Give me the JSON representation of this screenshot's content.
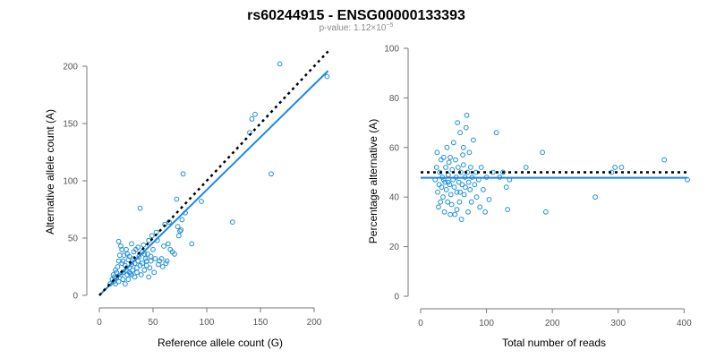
{
  "header": {
    "title": "rs60244915 - ENSG00000133393",
    "pvalue_text": "p-value: 1.12×10",
    "pvalue_exp": "−5"
  },
  "colors": {
    "points": "#1f8fd6",
    "fit": "#1e88e5",
    "reference": "#000000"
  },
  "chart_data": [
    {
      "type": "scatter",
      "xlabel": "Reference allele count (G)",
      "ylabel": "Alternative allele count (A)",
      "xlim": [
        0,
        215
      ],
      "ylim": [
        0,
        200
      ],
      "xticks": [
        0,
        50,
        100,
        150,
        200
      ],
      "yticks": [
        0,
        50,
        100,
        150,
        200
      ],
      "fit_line": {
        "x": [
          0,
          213
        ],
        "y": [
          0,
          196
        ]
      },
      "reference_line": {
        "x": [
          0,
          213
        ],
        "y": [
          0,
          213
        ]
      },
      "points": [
        [
          10,
          10
        ],
        [
          12,
          14
        ],
        [
          13,
          18
        ],
        [
          14,
          12
        ],
        [
          15,
          10
        ],
        [
          15,
          22
        ],
        [
          16,
          15
        ],
        [
          17,
          25
        ],
        [
          18,
          12
        ],
        [
          18,
          30
        ],
        [
          18,
          47
        ],
        [
          19,
          35
        ],
        [
          20,
          18
        ],
        [
          20,
          43
        ],
        [
          21,
          28
        ],
        [
          22,
          20
        ],
        [
          22,
          14
        ],
        [
          23,
          35
        ],
        [
          24,
          26
        ],
        [
          24,
          10
        ],
        [
          25,
          22
        ],
        [
          25,
          40
        ],
        [
          26,
          18
        ],
        [
          27,
          31
        ],
        [
          27,
          14
        ],
        [
          28,
          24
        ],
        [
          28,
          34
        ],
        [
          29,
          19
        ],
        [
          30,
          27
        ],
        [
          30,
          45
        ],
        [
          31,
          22
        ],
        [
          32,
          32
        ],
        [
          33,
          16
        ],
        [
          33,
          28
        ],
        [
          34,
          40
        ],
        [
          35,
          24
        ],
        [
          35,
          20
        ],
        [
          36,
          30
        ],
        [
          37,
          34
        ],
        [
          38,
          26
        ],
        [
          38,
          76
        ],
        [
          39,
          18
        ],
        [
          40,
          38
        ],
        [
          40,
          28
        ],
        [
          41,
          44
        ],
        [
          42,
          22
        ],
        [
          43,
          32
        ],
        [
          44,
          26
        ],
        [
          45,
          36
        ],
        [
          46,
          16
        ],
        [
          46,
          48
        ],
        [
          47,
          24
        ],
        [
          48,
          30
        ],
        [
          49,
          52
        ],
        [
          50,
          40
        ],
        [
          51,
          20
        ],
        [
          52,
          32
        ],
        [
          53,
          55
        ],
        [
          55,
          27
        ],
        [
          56,
          30
        ],
        [
          58,
          32
        ],
        [
          59,
          25
        ],
        [
          60,
          43
        ],
        [
          61,
          62
        ],
        [
          62,
          28
        ],
        [
          63,
          30
        ],
        [
          64,
          45
        ],
        [
          65,
          64
        ],
        [
          66,
          40
        ],
        [
          68,
          38
        ],
        [
          70,
          36
        ],
        [
          72,
          84
        ],
        [
          73,
          60
        ],
        [
          74,
          52
        ],
        [
          75,
          56
        ],
        [
          76,
          57
        ],
        [
          77,
          66
        ],
        [
          78,
          106
        ],
        [
          80,
          72
        ],
        [
          86,
          45
        ],
        [
          95,
          82
        ],
        [
          124,
          64
        ],
        [
          140,
          142
        ],
        [
          142,
          154
        ],
        [
          145,
          158
        ],
        [
          160,
          106
        ],
        [
          168,
          202
        ],
        [
          212,
          191
        ],
        [
          30,
          18
        ],
        [
          32,
          38
        ],
        [
          36,
          42
        ],
        [
          42,
          36
        ],
        [
          26,
          36
        ],
        [
          21,
          40
        ],
        [
          16,
          20
        ],
        [
          14,
          16
        ],
        [
          22,
          30
        ],
        [
          28,
          20
        ],
        [
          44,
          30
        ],
        [
          48,
          34
        ],
        [
          54,
          48
        ]
      ]
    },
    {
      "type": "scatter",
      "xlabel": "Total number of reads",
      "ylabel": "Percentage alternative (A)",
      "xlim": [
        0,
        405
      ],
      "ylim": [
        0,
        100
      ],
      "xticks": [
        0,
        100,
        200,
        300,
        400
      ],
      "yticks": [
        0,
        20,
        40,
        60,
        80,
        100
      ],
      "fit_line": {
        "x": [
          0,
          405
        ],
        "y": [
          47.8,
          47.8
        ]
      },
      "reference_line": {
        "x": [
          0,
          405
        ],
        "y": [
          50,
          50
        ]
      },
      "points": [
        [
          22,
          47
        ],
        [
          24,
          52
        ],
        [
          25,
          58
        ],
        [
          26,
          42
        ],
        [
          27,
          36
        ],
        [
          28,
          45
        ],
        [
          29,
          50
        ],
        [
          30,
          38
        ],
        [
          31,
          55
        ],
        [
          32,
          44
        ],
        [
          33,
          48
        ],
        [
          34,
          40
        ],
        [
          35,
          56
        ],
        [
          36,
          34
        ],
        [
          37,
          46
        ],
        [
          38,
          52
        ],
        [
          39,
          43
        ],
        [
          40,
          60
        ],
        [
          41,
          38
        ],
        [
          42,
          49
        ],
        [
          43,
          54
        ],
        [
          44,
          45
        ],
        [
          45,
          56
        ],
        [
          46,
          41
        ],
        [
          47,
          37
        ],
        [
          48,
          51
        ],
        [
          49,
          47
        ],
        [
          50,
          62
        ],
        [
          51,
          44
        ],
        [
          52,
          33
        ],
        [
          53,
          55
        ],
        [
          54,
          48
        ],
        [
          55,
          42
        ],
        [
          56,
          70
        ],
        [
          57,
          52
        ],
        [
          58,
          46
        ],
        [
          59,
          38
        ],
        [
          60,
          66
        ],
        [
          61,
          50
        ],
        [
          62,
          31
        ],
        [
          63,
          45
        ],
        [
          64,
          57
        ],
        [
          65,
          53
        ],
        [
          66,
          41
        ],
        [
          67,
          48
        ],
        [
          68,
          44
        ],
        [
          69,
          68
        ],
        [
          70,
          73
        ],
        [
          71,
          50
        ],
        [
          72,
          34
        ],
        [
          73,
          46
        ],
        [
          74,
          58
        ],
        [
          75,
          43
        ],
        [
          76,
          52
        ],
        [
          77,
          38
        ],
        [
          78,
          48
        ],
        [
          80,
          63
        ],
        [
          82,
          45
        ],
        [
          84,
          50
        ],
        [
          85,
          40
        ],
        [
          88,
          47
        ],
        [
          90,
          36
        ],
        [
          92,
          52
        ],
        [
          95,
          43
        ],
        [
          98,
          34
        ],
        [
          100,
          48
        ],
        [
          104,
          39
        ],
        [
          110,
          50
        ],
        [
          115,
          66
        ],
        [
          120,
          48
        ],
        [
          125,
          50
        ],
        [
          130,
          44
        ],
        [
          132,
          35
        ],
        [
          135,
          47
        ],
        [
          160,
          52
        ],
        [
          185,
          58
        ],
        [
          190,
          34
        ],
        [
          265,
          40
        ],
        [
          290,
          50
        ],
        [
          295,
          52
        ],
        [
          305,
          52
        ],
        [
          370,
          55
        ],
        [
          405,
          47
        ],
        [
          55,
          35
        ],
        [
          60,
          42
        ],
        [
          65,
          60
        ],
        [
          45,
          33
        ],
        [
          35,
          47
        ],
        [
          42,
          46
        ]
      ]
    }
  ]
}
